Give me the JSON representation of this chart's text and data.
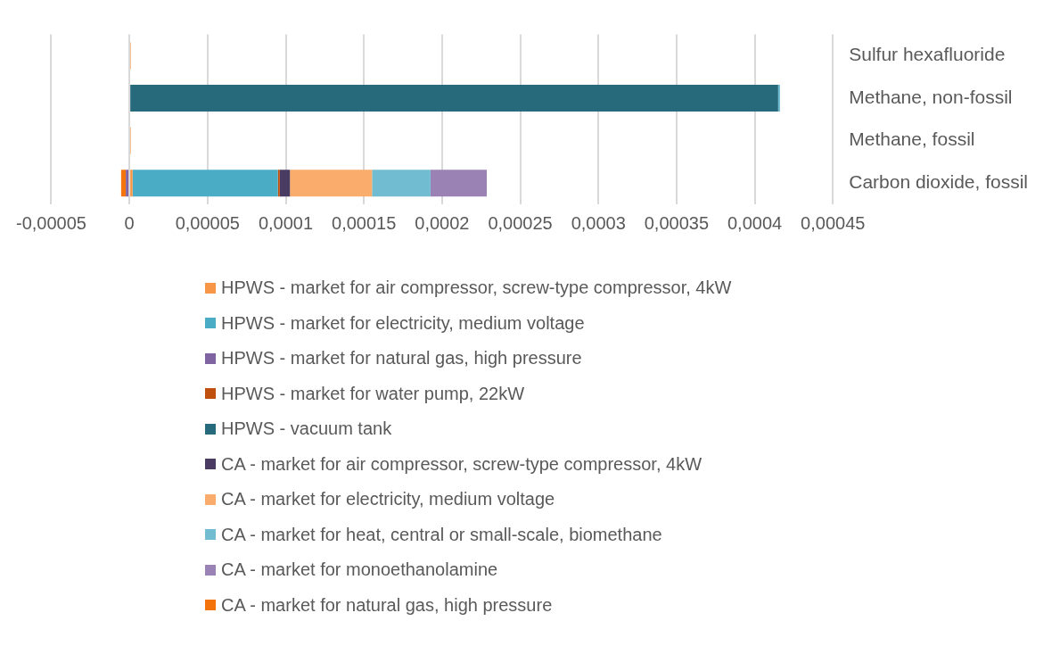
{
  "chart_data": {
    "type": "bar",
    "orientation": "horizontal",
    "stacked": true,
    "grid": "x",
    "legend": "bottom",
    "categories": [
      "Sulfur hexafluoride",
      "Methane, non-fossil",
      "Methane, fossil",
      "Carbon dioxide, fossil"
    ],
    "xlim": [
      -5e-05,
      0.00045
    ],
    "xticks": [
      {
        "value": -5e-05,
        "label": "-0,00005"
      },
      0,
      {
        "value": 5e-05,
        "label": "0,00005"
      },
      {
        "value": 0.0001,
        "label": "0,0001"
      },
      {
        "value": 0.00015,
        "label": "0,00015"
      },
      {
        "value": 0.0002,
        "label": "0,0002"
      },
      {
        "value": 0.00025,
        "label": "0,00025"
      },
      {
        "value": 0.0003,
        "label": "0,0003"
      },
      {
        "value": 0.00035,
        "label": "0,00035"
      },
      {
        "value": 0.0004,
        "label": "0,0004"
      },
      {
        "value": 0.00045,
        "label": "0,00045"
      }
    ],
    "series": [
      {
        "name": "HPWS - market for air compressor, screw-type compressor, 4kW",
        "color": "#f79646",
        "values": [
          null,
          null,
          null,
          2e-06
        ]
      },
      {
        "name": "HPWS - market for electricity, medium voltage",
        "color": "#4bacc6",
        "values": [
          null,
          null,
          null,
          9.3e-05
        ]
      },
      {
        "name": "HPWS - market for natural gas, high pressure",
        "color": "#8064a2",
        "values": [
          null,
          null,
          null,
          -2.3e-06
        ]
      },
      {
        "name": "HPWS - market for water pump, 22kW",
        "color": "#c0500e",
        "values": [
          null,
          null,
          null,
          1.2e-06
        ]
      },
      {
        "name": "HPWS - vacuum tank",
        "color": "#276a7c",
        "values": [
          null,
          0.000415,
          null,
          null
        ]
      },
      {
        "name": "CA - market for air compressor, screw-type compressor, 4kW",
        "color": "#4a3b62",
        "values": [
          null,
          null,
          null,
          6.5e-06
        ]
      },
      {
        "name": "CA - market for electricity, medium voltage",
        "color": "#f9ac6b",
        "values": [
          1e-06,
          null,
          1e-06,
          5.25e-05
        ]
      },
      {
        "name": "CA - market for heat, central or small-scale, biomethane",
        "color": "#71bcd0",
        "values": [
          null,
          1.2e-06,
          null,
          3.74e-05
        ]
      },
      {
        "name": "CA - market for monoethanolamine",
        "color": "#9a82b4",
        "values": [
          null,
          null,
          null,
          3.6e-05
        ]
      },
      {
        "name": "CA - market for natural gas, high pressure",
        "color": "#f4740c",
        "values": [
          null,
          null,
          null,
          -3e-06
        ]
      }
    ]
  }
}
